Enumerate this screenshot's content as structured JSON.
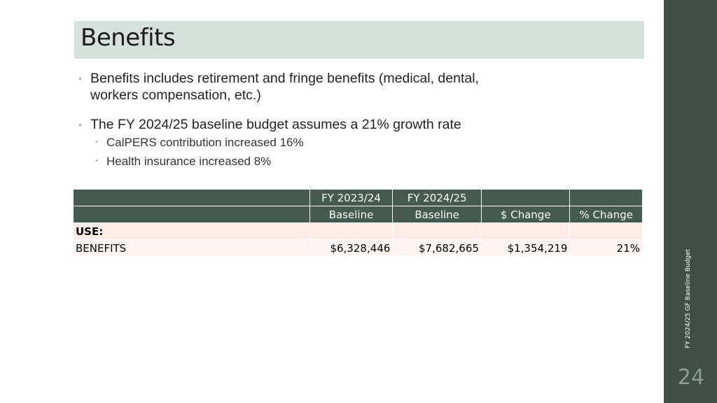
{
  "title": "Benefits",
  "bullets": [
    {
      "text": "Benefits includes retirement and fringe benefits (medical, dental,",
      "text2": "workers compensation, etc.)"
    },
    {
      "text": "The FY 2024/25 baseline budget assumes a 21% growth rate",
      "sub": [
        "CalPERS contribution increased 16%",
        "Health insurance increased 8%"
      ]
    }
  ],
  "table": {
    "header_row1": [
      "",
      "FY 2023/24",
      "FY 2024/25",
      "",
      ""
    ],
    "header_row2": [
      "",
      "Baseline",
      "Baseline",
      "$ Change",
      "% Change"
    ],
    "section_label": "USE:",
    "rows": [
      {
        "label": "BENEFITS",
        "fy2324": "$6,328,446",
        "fy2425": "$7,682,665",
        "change": "$1,354,219",
        "pct": "21%"
      }
    ]
  },
  "sidebar": {
    "caption": "FY 2024/25 GF Baseline Budget",
    "page_number": "24"
  },
  "colors": {
    "title_bar": "#d6e1dc",
    "panel": "#3f4f44",
    "table_header": "#455b4f",
    "table_row": "#fcebe6"
  }
}
